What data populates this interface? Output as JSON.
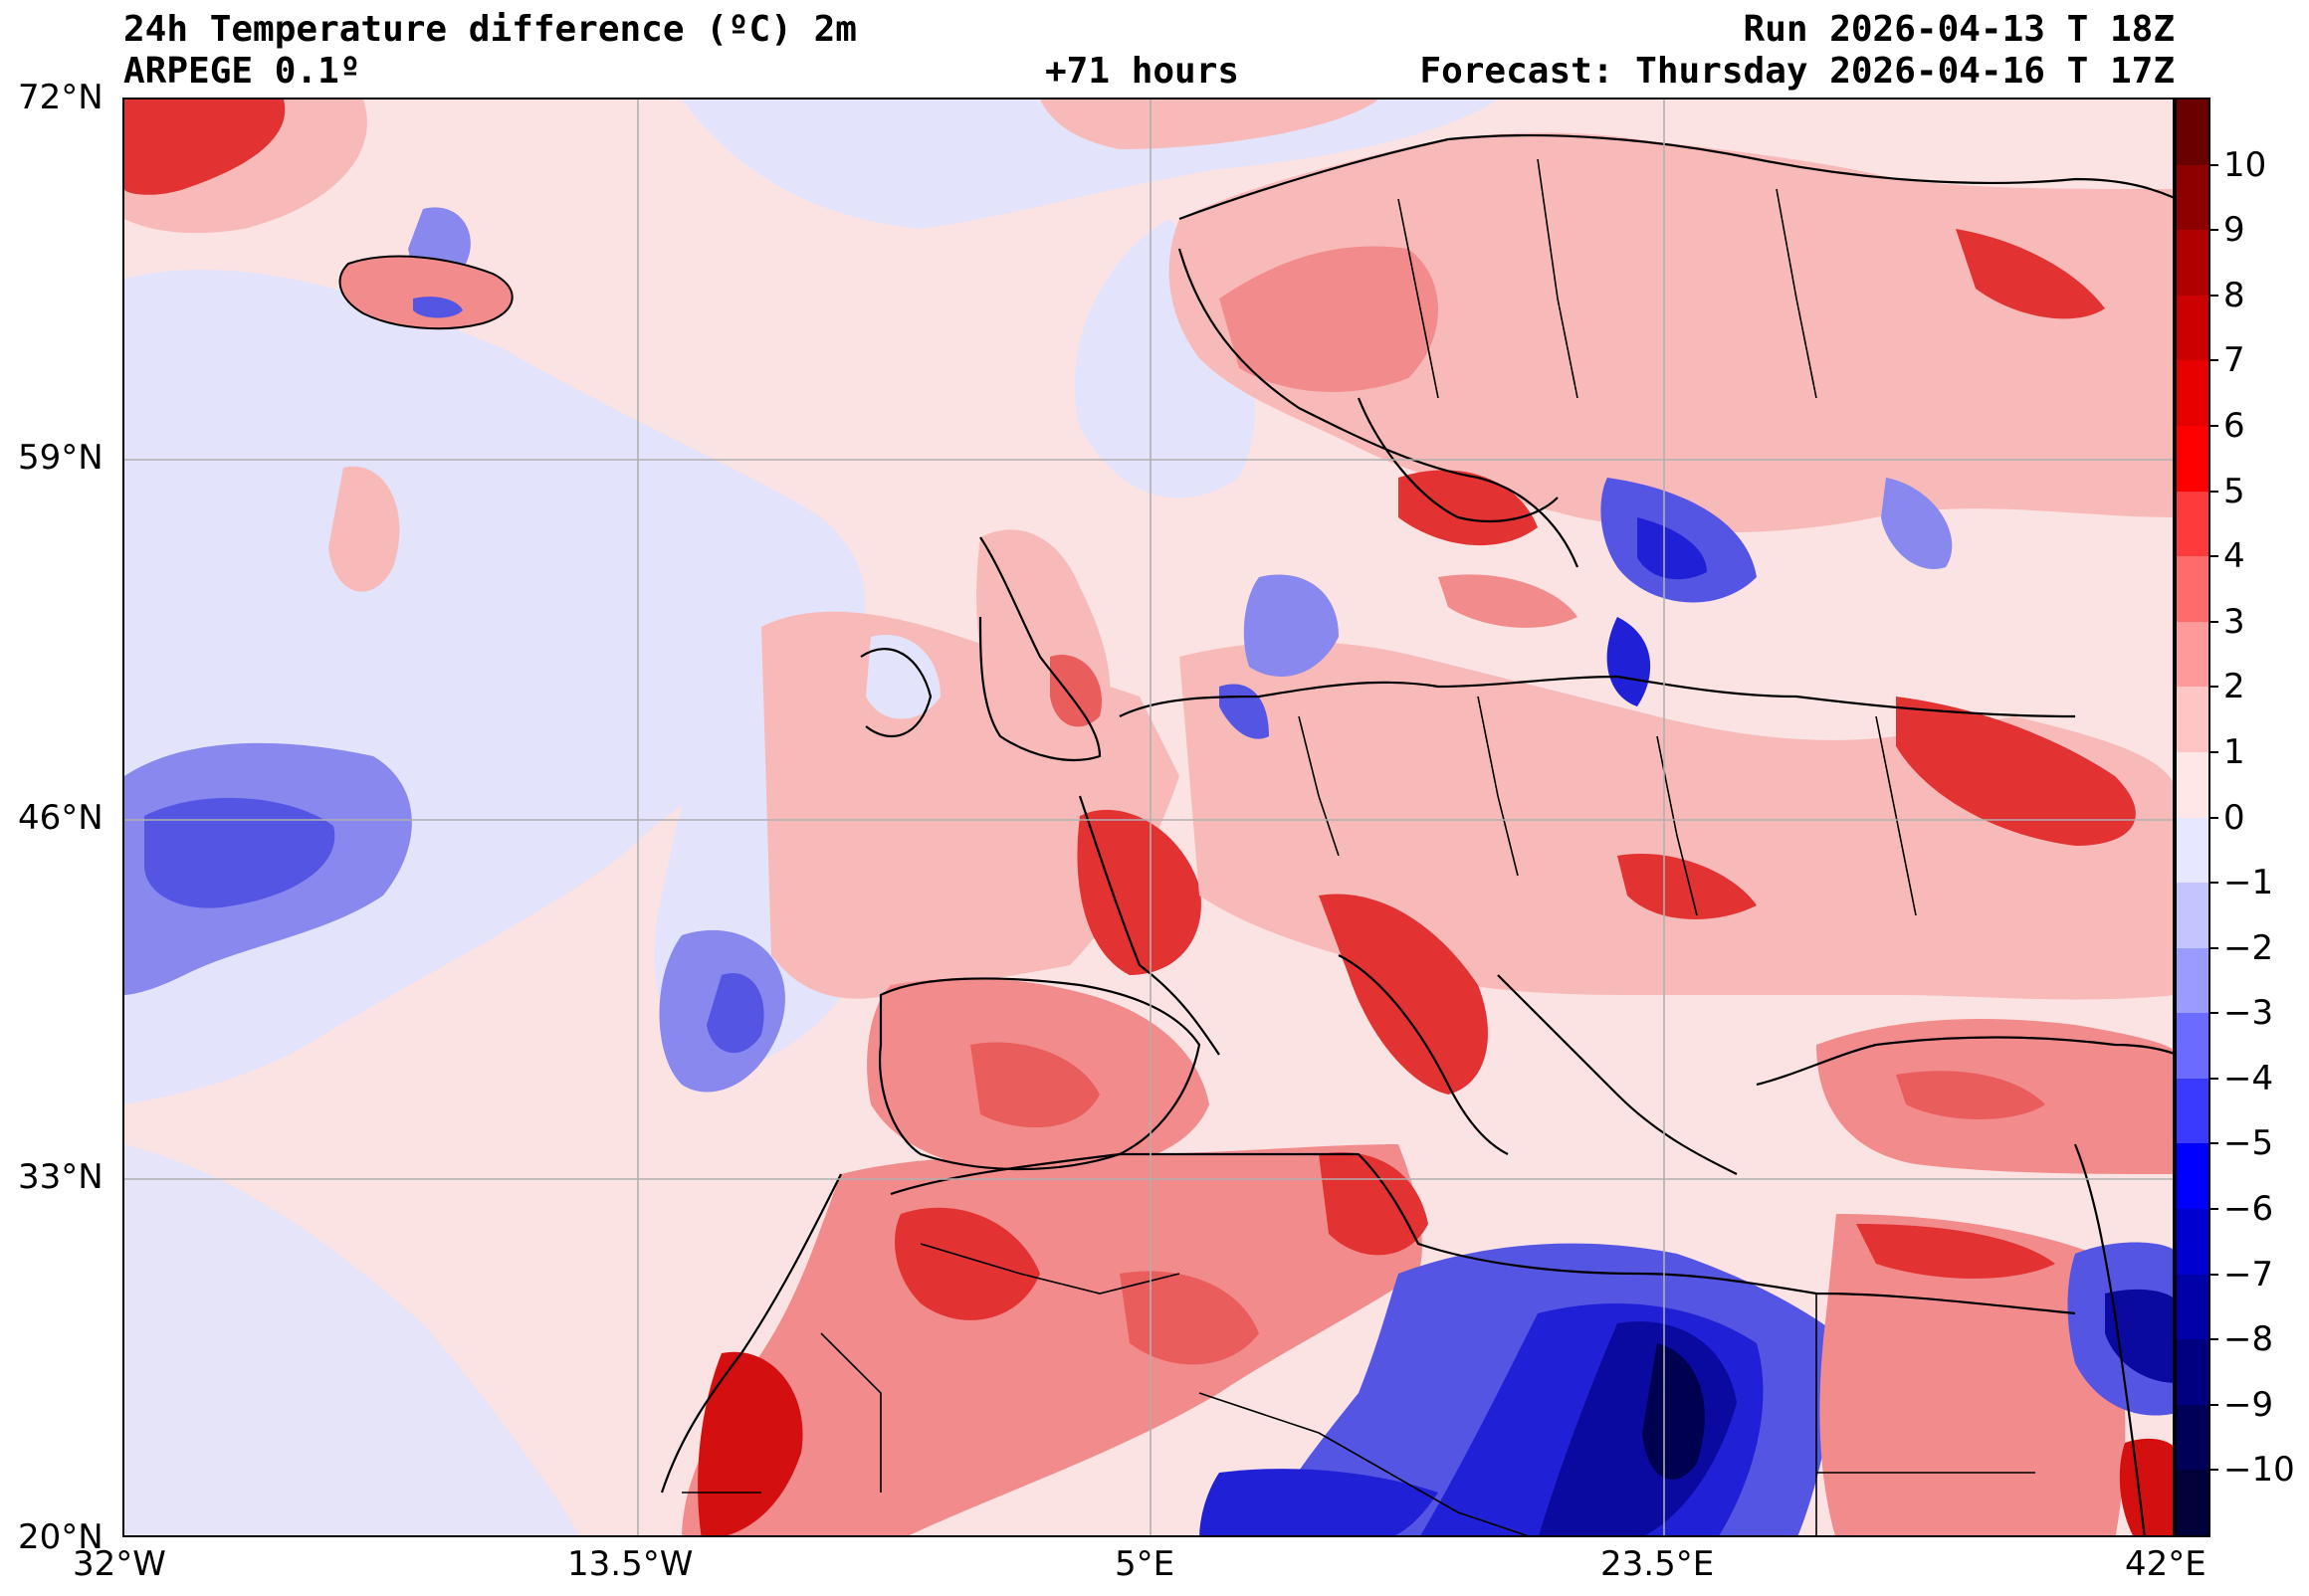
{
  "header": {
    "title_line1": "24h Temperature difference (ºC) 2m",
    "title_line2": "ARPEGE 0.1º",
    "lead_time": "+71 hours",
    "run": "Run 2026-04-13 T 18Z",
    "forecast": "Forecast: Thursday 2026-04-16 T 17Z"
  },
  "map": {
    "projection": "lat-lon",
    "lon_range": [
      -32,
      42
    ],
    "lat_range": [
      20,
      72
    ],
    "gridlines": true,
    "lat_labels": [
      "72°N",
      "59°N",
      "46°N",
      "33°N",
      "20°N"
    ],
    "lon_labels": [
      "32°W",
      "13.5°W",
      "5°E",
      "23.5°E",
      "42°E"
    ],
    "field": "24h 2m temperature difference",
    "dominant_background": "light red (0 to 1)",
    "colors": {
      "pos1": "#fbe3e3",
      "pos2": "#f8b9b9",
      "pos3": "#f28b8b",
      "pos4": "#ea5d5d",
      "pos5": "#e23232",
      "pos6": "#d40f0f",
      "neg1": "#e3e3fb",
      "neg2": "#babaf5",
      "neg3": "#8888ee",
      "neg4": "#5555e4",
      "neg5": "#2020d6",
      "neg6": "#0a0aa0",
      "neg7": "#000050"
    }
  },
  "colorbar": {
    "labels": [
      "10",
      "9",
      "8",
      "7",
      "6",
      "5",
      "4",
      "3",
      "2",
      "1",
      "0",
      "−1",
      "−2",
      "−3",
      "−4",
      "−5",
      "−6",
      "−7",
      "−8",
      "−9",
      "−10"
    ],
    "colors": [
      "#6b0000",
      "#8e0000",
      "#b00000",
      "#cc0000",
      "#e60000",
      "#ff0000",
      "#ff3a3a",
      "#ff6b6b",
      "#ff9a9a",
      "#ffc4c4",
      "#ffe7e7",
      "#e7e7ff",
      "#c4c4ff",
      "#9a9aff",
      "#6b6bff",
      "#3a3aff",
      "#0000ff",
      "#0000d0",
      "#0000a8",
      "#000080",
      "#000058",
      "#00003a"
    ]
  }
}
